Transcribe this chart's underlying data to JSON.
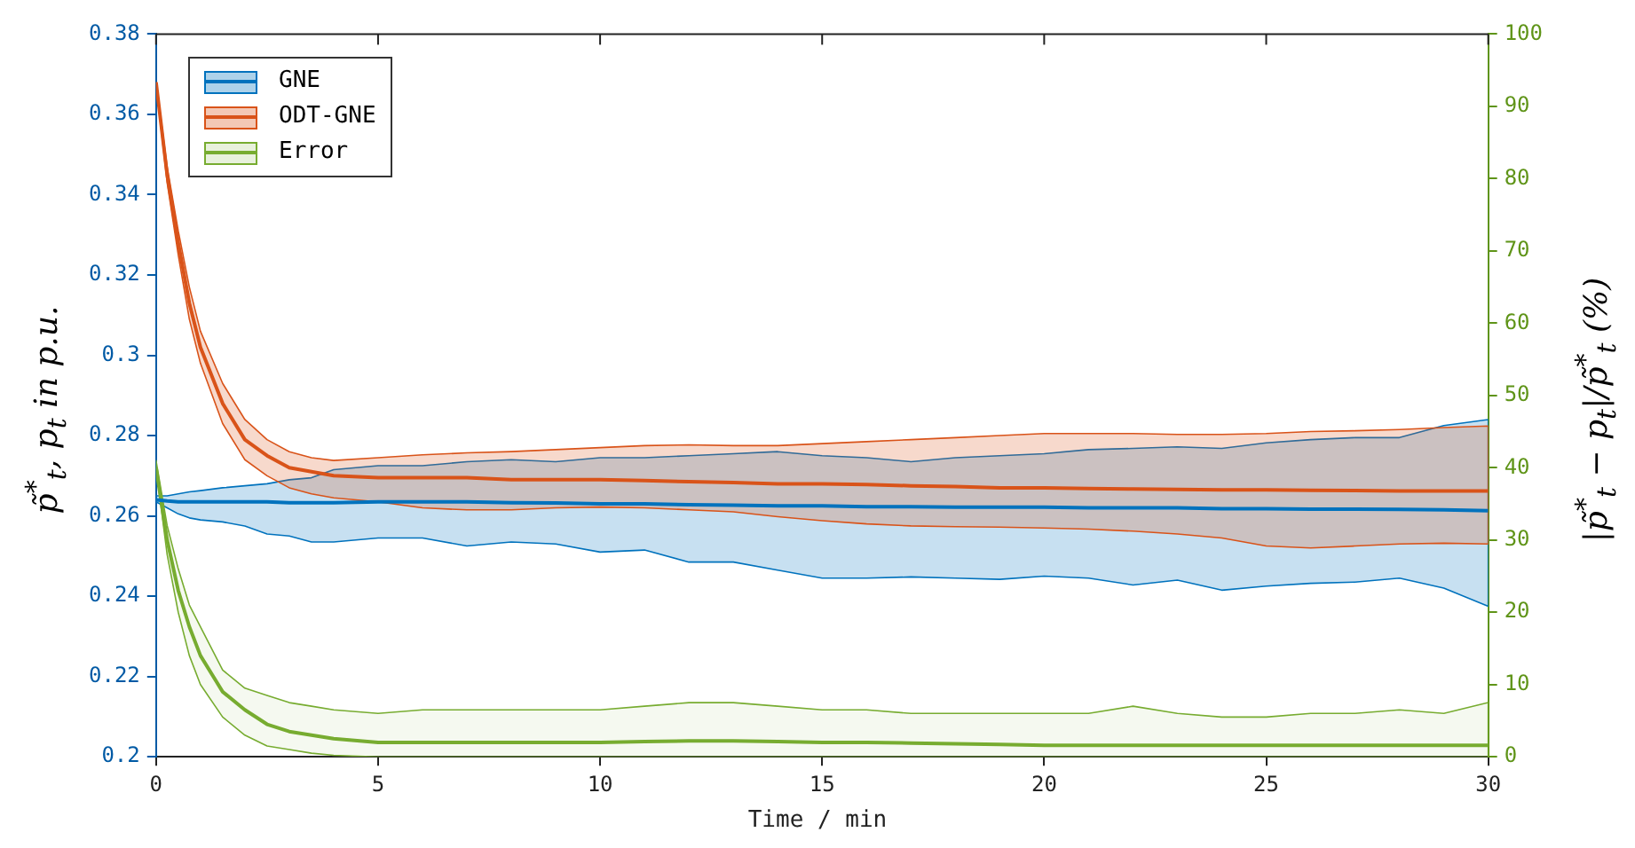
{
  "chart_data": {
    "type": "line",
    "xlabel": "Time / min",
    "ylabel": "p̃$^{*}$$_{t}$, p$_{t}$ in p.u.",
    "y2label": "|p̃$^{*}$$_{t}$ − p$_{t}$|/p̃$^{*}$$_{t}$ (%)",
    "x": [
      0,
      0.25,
      0.5,
      0.75,
      1,
      1.5,
      2,
      2.5,
      3,
      3.5,
      4,
      5,
      6,
      7,
      8,
      9,
      10,
      11,
      12,
      13,
      14,
      15,
      16,
      17,
      18,
      19,
      20,
      21,
      22,
      23,
      24,
      25,
      26,
      27,
      28,
      29,
      30
    ],
    "series": [
      {
        "name": "GNE",
        "color": "#0072bd",
        "values": [
          0.264,
          0.2637,
          0.2635,
          0.2635,
          0.2635,
          0.2635,
          0.2635,
          0.2635,
          0.2633,
          0.2633,
          0.2633,
          0.2635,
          0.2635,
          0.2635,
          0.2633,
          0.2632,
          0.263,
          0.263,
          0.2628,
          0.2627,
          0.2625,
          0.2625,
          0.2623,
          0.2623,
          0.2622,
          0.2622,
          0.2622,
          0.262,
          0.262,
          0.262,
          0.2618,
          0.2618,
          0.2617,
          0.2617,
          0.2616,
          0.2615,
          0.2613
        ],
        "upper": [
          0.265,
          0.265,
          0.2655,
          0.266,
          0.2663,
          0.267,
          0.2675,
          0.268,
          0.269,
          0.2695,
          0.2715,
          0.2725,
          0.2725,
          0.2735,
          0.274,
          0.2735,
          0.2745,
          0.2745,
          0.275,
          0.2755,
          0.276,
          0.275,
          0.2745,
          0.2735,
          0.2745,
          0.275,
          0.2755,
          0.2765,
          0.2768,
          0.2772,
          0.2768,
          0.2782,
          0.279,
          0.2795,
          0.2795,
          0.2825,
          0.284
        ],
        "lower": [
          0.2635,
          0.262,
          0.2605,
          0.2595,
          0.259,
          0.2585,
          0.2575,
          0.2555,
          0.255,
          0.2535,
          0.2535,
          0.2545,
          0.2545,
          0.2525,
          0.2535,
          0.253,
          0.251,
          0.2515,
          0.2485,
          0.2485,
          0.2465,
          0.2445,
          0.2445,
          0.2448,
          0.2445,
          0.2442,
          0.245,
          0.2445,
          0.2428,
          0.244,
          0.2415,
          0.2425,
          0.2432,
          0.2435,
          0.2445,
          0.242,
          0.2375
        ]
      },
      {
        "name": "ODT-GNE",
        "color": "#d95319",
        "values": [
          0.368,
          0.345,
          0.328,
          0.313,
          0.302,
          0.288,
          0.279,
          0.275,
          0.272,
          0.271,
          0.27,
          0.2695,
          0.2695,
          0.2695,
          0.269,
          0.269,
          0.269,
          0.2688,
          0.2685,
          0.2683,
          0.268,
          0.268,
          0.2678,
          0.2675,
          0.2673,
          0.267,
          0.267,
          0.2668,
          0.2667,
          0.2666,
          0.2665,
          0.2665,
          0.2664,
          0.2663,
          0.2662,
          0.2662,
          0.2662
        ],
        "upper": [
          0.368,
          0.347,
          0.331,
          0.317,
          0.306,
          0.293,
          0.284,
          0.279,
          0.276,
          0.2745,
          0.2738,
          0.2745,
          0.2752,
          0.2757,
          0.276,
          0.2765,
          0.277,
          0.2775,
          0.2777,
          0.2775,
          0.2775,
          0.278,
          0.2785,
          0.279,
          0.2795,
          0.28,
          0.2805,
          0.2805,
          0.2805,
          0.2803,
          0.2803,
          0.2805,
          0.281,
          0.2812,
          0.2815,
          0.282,
          0.2824
        ],
        "lower": [
          0.368,
          0.343,
          0.325,
          0.309,
          0.298,
          0.283,
          0.274,
          0.27,
          0.267,
          0.2655,
          0.2645,
          0.2635,
          0.262,
          0.2615,
          0.2615,
          0.262,
          0.2622,
          0.262,
          0.2615,
          0.261,
          0.2598,
          0.2588,
          0.258,
          0.2575,
          0.2573,
          0.2572,
          0.257,
          0.2567,
          0.2562,
          0.2555,
          0.2545,
          0.2525,
          0.252,
          0.2525,
          0.253,
          0.2532,
          0.253
        ]
      },
      {
        "name": "Error",
        "color": "#77ac30",
        "axis": "y2",
        "values": [
          40,
          30,
          23,
          18,
          14,
          9,
          6.5,
          4.5,
          3.5,
          3,
          2.5,
          2,
          2,
          2,
          2,
          2,
          2,
          2.1,
          2.2,
          2.2,
          2.1,
          2,
          2,
          1.9,
          1.8,
          1.7,
          1.6,
          1.6,
          1.6,
          1.6,
          1.6,
          1.6,
          1.6,
          1.6,
          1.6,
          1.6,
          1.6
        ],
        "upper": [
          41,
          32,
          26,
          21,
          18,
          12,
          9.5,
          8.5,
          7.5,
          7,
          6.5,
          6,
          6.5,
          6.5,
          6.5,
          6.5,
          6.5,
          7,
          7.5,
          7.5,
          7,
          6.5,
          6.5,
          6,
          6,
          6,
          6,
          6,
          7,
          6,
          5.5,
          5.5,
          6,
          6,
          6.5,
          6,
          7.5
        ],
        "lower": [
          40,
          28,
          20,
          14,
          10,
          5.5,
          3,
          1.5,
          1,
          0.5,
          0.2,
          0,
          0,
          0,
          0,
          0,
          0,
          0,
          0,
          0,
          0,
          0,
          0,
          0,
          0,
          0,
          0,
          0,
          0,
          0,
          0,
          0,
          0,
          0,
          0,
          0,
          0
        ]
      }
    ],
    "xlim": [
      0,
      30
    ],
    "xticks": [
      0,
      5,
      10,
      15,
      20,
      25,
      30
    ],
    "ylim": [
      0.2,
      0.38
    ],
    "yticks": [
      {
        "value": 0.2,
        "label": "0.2"
      },
      0.22,
      0.24,
      0.26,
      0.28,
      {
        "value": 0.3,
        "label": "0.3"
      },
      0.32,
      0.34,
      0.36,
      0.38
    ],
    "y2lim": [
      0,
      100
    ],
    "y2ticks": [
      0,
      10,
      20,
      30,
      40,
      50,
      60,
      70,
      80,
      90,
      100
    ],
    "grid": false,
    "legend": "top left",
    "marker": "none",
    "line_style": "solid"
  }
}
